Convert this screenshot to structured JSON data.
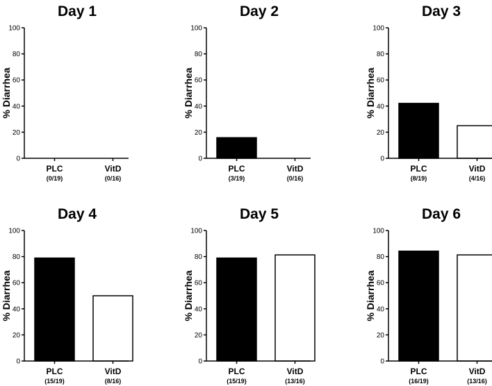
{
  "figure": {
    "panels_per_row": 3
  },
  "chart_data": [
    {
      "type": "bar",
      "title": "Day 1",
      "ylabel": "% Diarrhea",
      "xlabel": "",
      "ylim": [
        0,
        100
      ],
      "yticks": [
        0,
        20,
        40,
        60,
        80,
        100
      ],
      "categories": [
        "PLC",
        "VitD"
      ],
      "counts": [
        "(0/19)",
        "(0/16)"
      ],
      "values": [
        0,
        0
      ],
      "fills": [
        "#000000",
        "#ffffff"
      ]
    },
    {
      "type": "bar",
      "title": "Day 2",
      "ylabel": "% Diarrhea",
      "xlabel": "",
      "ylim": [
        0,
        100
      ],
      "yticks": [
        0,
        20,
        40,
        60,
        80,
        100
      ],
      "categories": [
        "PLC",
        "VitD"
      ],
      "counts": [
        "(3/19)",
        "(0/16)"
      ],
      "values": [
        15.8,
        0
      ],
      "fills": [
        "#000000",
        "#ffffff"
      ]
    },
    {
      "type": "bar",
      "title": "Day 3",
      "ylabel": "% Diarrhea",
      "xlabel": "",
      "ylim": [
        0,
        100
      ],
      "yticks": [
        0,
        20,
        40,
        60,
        80,
        100
      ],
      "categories": [
        "PLC",
        "VitD"
      ],
      "counts": [
        "(8/19)",
        "(4/16)"
      ],
      "values": [
        42.1,
        25
      ],
      "fills": [
        "#000000",
        "#ffffff"
      ]
    },
    {
      "type": "bar",
      "title": "Day 4",
      "ylabel": "% Diarrhea",
      "xlabel": "",
      "ylim": [
        0,
        100
      ],
      "yticks": [
        0,
        20,
        40,
        60,
        80,
        100
      ],
      "categories": [
        "PLC",
        "VitD"
      ],
      "counts": [
        "(15/19)",
        "(8/16)"
      ],
      "values": [
        78.9,
        50
      ],
      "fills": [
        "#000000",
        "#ffffff"
      ]
    },
    {
      "type": "bar",
      "title": "Day 5",
      "ylabel": "% Diarrhea",
      "xlabel": "",
      "ylim": [
        0,
        100
      ],
      "yticks": [
        0,
        20,
        40,
        60,
        80,
        100
      ],
      "categories": [
        "PLC",
        "VitD"
      ],
      "counts": [
        "(15/19)",
        "(13/16)"
      ],
      "values": [
        78.9,
        81.3
      ],
      "fills": [
        "#000000",
        "#ffffff"
      ]
    },
    {
      "type": "bar",
      "title": "Day 6",
      "ylabel": "% Diarrhea",
      "xlabel": "",
      "ylim": [
        0,
        100
      ],
      "yticks": [
        0,
        20,
        40,
        60,
        80,
        100
      ],
      "categories": [
        "PLC",
        "VitD"
      ],
      "counts": [
        "(16/19)",
        "(13/16)"
      ],
      "values": [
        84.2,
        81.3
      ],
      "fills": [
        "#000000",
        "#ffffff"
      ]
    }
  ]
}
